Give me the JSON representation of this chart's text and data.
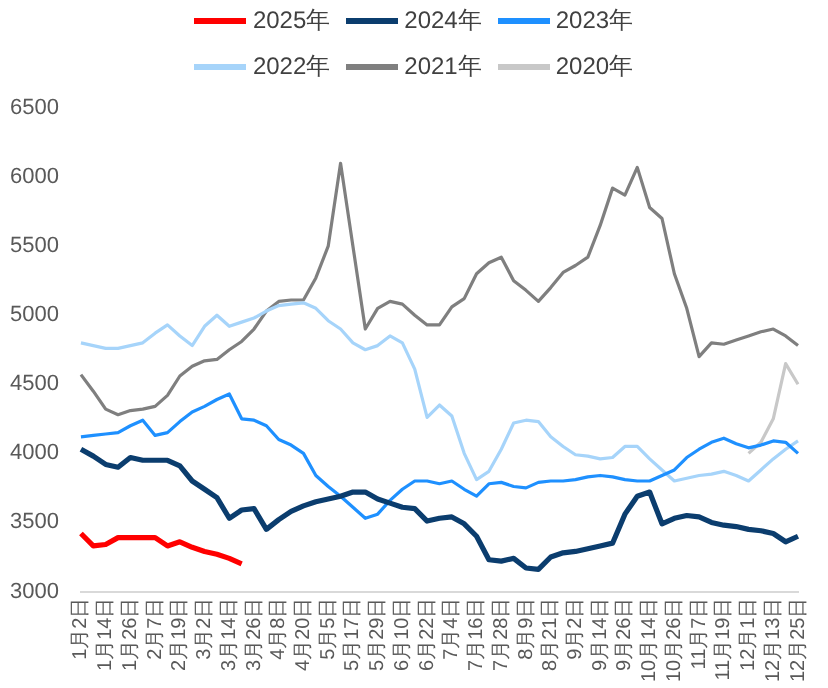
{
  "chart_data": {
    "type": "line",
    "legend": "top",
    "marker": "none",
    "line_style": "solid",
    "grid": false,
    "categories": [
      "1月2日",
      null,
      "1月14日",
      null,
      "1月26日",
      null,
      "2月7日",
      null,
      "2月19日",
      null,
      "3月2日",
      null,
      "3月14日",
      null,
      "3月26日",
      null,
      "4月8日",
      null,
      "4月20日",
      null,
      "5月5日",
      null,
      "5月17日",
      null,
      "5月29日",
      null,
      "6月10日",
      null,
      "6月22日",
      null,
      "7月4日",
      null,
      "7月16日",
      null,
      "7月28日",
      null,
      "8月9日",
      null,
      "8月21日",
      null,
      "9月2日",
      null,
      "9月14日",
      null,
      "9月26日",
      null,
      "10月14日",
      null,
      "10月26日",
      null,
      "11月7日",
      null,
      "11月19日",
      null,
      "12月1日",
      null,
      "12月13日",
      null,
      "12月25日"
    ],
    "ylim": [
      3000,
      6500
    ],
    "yticks": [
      3000,
      3500,
      4000,
      4500,
      5000,
      5500,
      6000,
      6500
    ],
    "series": [
      {
        "name": "2025年",
        "color": "#ff0000",
        "values": [
          3420,
          3330,
          3340,
          3390,
          3390,
          3390,
          3390,
          3330,
          3360,
          3320,
          3290,
          3270,
          3240,
          3200,
          null,
          null,
          null,
          null,
          null,
          null,
          null,
          null,
          null,
          null,
          null,
          null,
          null,
          null,
          null,
          null,
          null,
          null,
          null,
          null,
          null,
          null,
          null,
          null,
          null,
          null,
          null,
          null,
          null,
          null,
          null,
          null,
          null,
          null,
          null,
          null,
          null,
          null,
          null,
          null,
          null,
          null,
          null,
          null,
          null
        ]
      },
      {
        "name": "2024年",
        "color": "#0b3d6e",
        "values": [
          4030,
          3980,
          3920,
          3900,
          3970,
          3950,
          3950,
          3950,
          3910,
          3800,
          3740,
          3680,
          3530,
          3590,
          3600,
          3450,
          3520,
          3580,
          3620,
          3650,
          3670,
          3690,
          3720,
          3720,
          3670,
          3640,
          3610,
          3600,
          3510,
          3530,
          3540,
          3490,
          3400,
          3230,
          3220,
          3240,
          3170,
          3160,
          3250,
          3280,
          3290,
          3310,
          3330,
          3350,
          3560,
          3690,
          3720,
          3490,
          3530,
          3550,
          3540,
          3500,
          3480,
          3470,
          3450,
          3440,
          3420,
          3360,
          3400
        ]
      },
      {
        "name": "2023年",
        "color": "#1e90ff",
        "values": [
          4120,
          4130,
          4140,
          4150,
          4200,
          4240,
          4130,
          4150,
          4230,
          4300,
          4340,
          4390,
          4430,
          4250,
          4240,
          4200,
          4100,
          4060,
          4000,
          3840,
          3760,
          3690,
          3610,
          3530,
          3560,
          3660,
          3740,
          3800,
          3800,
          3780,
          3800,
          3740,
          3690,
          3780,
          3790,
          3760,
          3750,
          3790,
          3800,
          3800,
          3810,
          3830,
          3840,
          3830,
          3810,
          3800,
          3800,
          3840,
          3880,
          3970,
          4030,
          4080,
          4110,
          4070,
          4040,
          4060,
          4090,
          4080,
          4000
        ]
      },
      {
        "name": "2022年",
        "color": "#a6d4fa",
        "values": [
          4800,
          4780,
          4760,
          4760,
          4780,
          4800,
          4870,
          4930,
          4850,
          4780,
          4920,
          5000,
          4920,
          4950,
          4980,
          5030,
          5070,
          5080,
          5090,
          5050,
          4960,
          4900,
          4800,
          4750,
          4780,
          4850,
          4800,
          4610,
          4260,
          4350,
          4270,
          4000,
          3810,
          3870,
          4030,
          4220,
          4240,
          4230,
          4120,
          4050,
          3990,
          3980,
          3960,
          3970,
          4050,
          4050,
          3960,
          3880,
          3800,
          3820,
          3840,
          3850,
          3870,
          3840,
          3800,
          3880,
          3960,
          4030,
          4090
        ]
      },
      {
        "name": "2021年",
        "color": "#7f7f7f",
        "values": [
          4570,
          4450,
          4320,
          4280,
          4310,
          4320,
          4340,
          4420,
          4560,
          4630,
          4670,
          4680,
          4750,
          4810,
          4900,
          5030,
          5100,
          5110,
          5110,
          5270,
          5500,
          6100,
          5500,
          4900,
          5050,
          5100,
          5080,
          5000,
          4930,
          4930,
          5060,
          5120,
          5300,
          5380,
          5420,
          5250,
          5180,
          5100,
          5200,
          5310,
          5360,
          5420,
          5650,
          5920,
          5870,
          6070,
          5780,
          5700,
          5300,
          5050,
          4700,
          4800,
          4790,
          4820,
          4850,
          4880,
          4900,
          4850,
          4780
        ]
      },
      {
        "name": "2020年",
        "color": "#c8c8c8",
        "values": [
          null,
          null,
          null,
          null,
          null,
          null,
          null,
          null,
          null,
          null,
          null,
          null,
          null,
          null,
          null,
          null,
          null,
          null,
          null,
          null,
          null,
          null,
          null,
          null,
          null,
          null,
          null,
          null,
          null,
          null,
          null,
          null,
          null,
          null,
          null,
          null,
          null,
          null,
          null,
          null,
          null,
          null,
          null,
          null,
          null,
          null,
          null,
          null,
          null,
          null,
          null,
          null,
          null,
          null,
          4000,
          4080,
          4250,
          4650,
          4500
        ]
      }
    ]
  }
}
